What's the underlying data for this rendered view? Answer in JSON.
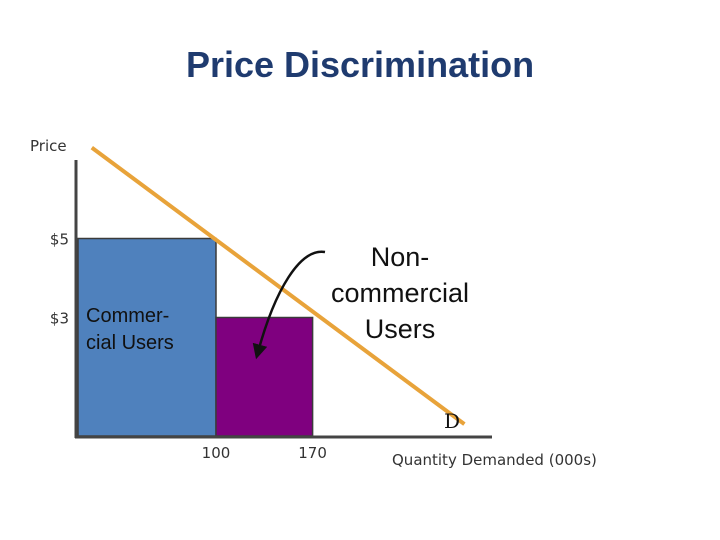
{
  "title": "Price Discrimination",
  "chart_data": {
    "type": "area",
    "title": "Price Discrimination",
    "xlabel": "Quantity Demanded (000s)",
    "ylabel": "Price",
    "x_ticks": [
      {
        "value": 100,
        "label": "100"
      },
      {
        "value": 170,
        "label": "170"
      }
    ],
    "y_ticks": [
      {
        "value": 5,
        "label": "$5"
      },
      {
        "value": 3,
        "label": "$3"
      }
    ],
    "demand_curve": {
      "label": "D",
      "points": [
        [
          10,
          7.3
        ],
        [
          280,
          0.3
        ]
      ]
    },
    "regions": [
      {
        "name": "commercial-users",
        "x0": 0,
        "x1": 100,
        "price": 5,
        "color": "#4f81bd"
      },
      {
        "name": "noncommercial-users",
        "x0": 100,
        "x1": 170,
        "price": 3,
        "color": "#7f007f"
      }
    ],
    "annotations": {
      "commercial": [
        "Commer-",
        "cial Users"
      ],
      "noncommercial": [
        "Non-",
        "commercial",
        "Users"
      ]
    },
    "colors": {
      "axis": "#444444",
      "demand": "#e8a33a",
      "edge": "#3b3b3b"
    }
  }
}
